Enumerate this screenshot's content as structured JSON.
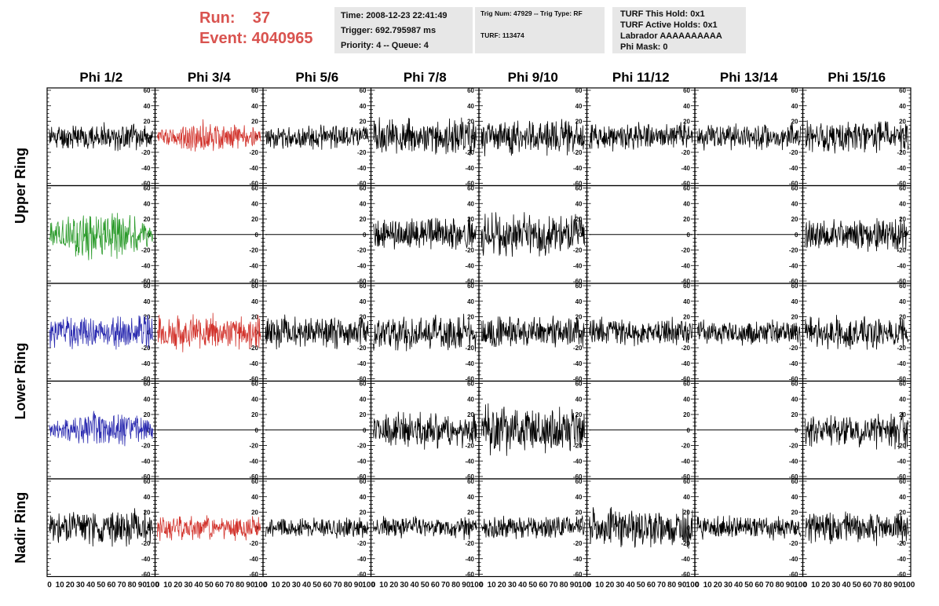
{
  "run": {
    "run_label": "Run:    37",
    "event_label": "Event: 4040965"
  },
  "info_box_1": {
    "time": "Time: 2008-12-23 22:41:49",
    "trigger": "Trigger: 692.795987 ms",
    "priority": "Priority: 4 -- Queue: 4"
  },
  "info_box_2": {
    "trig": "Trig Num: 47929 -- Trig Type: RF",
    "turf": "TURF: 113474"
  },
  "info_box_3": {
    "hold": "TURF This Hold: 0x1",
    "active": "TURF Active Holds: 0x1",
    "labrador": "Labrador AAAAAAAAAA",
    "mask": "Phi Mask: 0"
  },
  "colors": {
    "black": "#000000",
    "red": "#d2332c",
    "green": "#2a9a2a",
    "blue": "#2b2bb0",
    "info_bg": "#e7e7e7",
    "title_red": "#d9534f"
  },
  "chart_data": {
    "type": "line",
    "columns": [
      "Phi 1/2",
      "Phi 3/4",
      "Phi 5/6",
      "Phi 7/8",
      "Phi 9/10",
      "Phi 11/12",
      "Phi 13/14",
      "Phi 15/16"
    ],
    "ring_labels": [
      "Upper Ring",
      "Lower Ring",
      "Nadir Ring"
    ],
    "rows": 5,
    "ylim": [
      -60,
      60
    ],
    "xlim": [
      0,
      100
    ],
    "yticks": [
      "60",
      "40",
      "20",
      "0",
      "-20",
      "-40",
      "-60"
    ],
    "xticks": [
      "0",
      "10",
      "20",
      "30",
      "40",
      "50",
      "60",
      "70",
      "80",
      "90",
      "100"
    ],
    "panels": [
      [
        {
          "color": "black",
          "amp": 16,
          "seed": 11
        },
        {
          "color": "red",
          "amp": 20,
          "seed": 12,
          "env": true
        },
        {
          "color": "black",
          "amp": 14,
          "seed": 13
        },
        {
          "color": "black",
          "amp": 22,
          "seed": 14
        },
        {
          "color": "black",
          "amp": 22,
          "seed": 15
        },
        {
          "color": "black",
          "amp": 17,
          "seed": 16
        },
        {
          "color": "black",
          "amp": 16,
          "seed": 17
        },
        {
          "color": "black",
          "amp": 20,
          "seed": 18
        }
      ],
      [
        {
          "color": "green",
          "amp": 32,
          "seed": 21,
          "env": true
        },
        {
          "color": "black",
          "amp": 0,
          "seed": 22
        },
        {
          "color": "black",
          "amp": 0,
          "seed": 23
        },
        {
          "color": "black",
          "amp": 20,
          "seed": 24
        },
        {
          "color": "black",
          "amp": 26,
          "seed": 25
        },
        {
          "color": "black",
          "amp": 0,
          "seed": 26
        },
        {
          "color": "black",
          "amp": 0,
          "seed": 27
        },
        {
          "color": "black",
          "amp": 20,
          "seed": 28
        }
      ],
      [
        {
          "color": "blue",
          "amp": 20,
          "seed": 31
        },
        {
          "color": "red",
          "amp": 22,
          "seed": 32
        },
        {
          "color": "black",
          "amp": 20,
          "seed": 33
        },
        {
          "color": "black",
          "amp": 22,
          "seed": 34
        },
        {
          "color": "black",
          "amp": 20,
          "seed": 35
        },
        {
          "color": "black",
          "amp": 17,
          "seed": 36
        },
        {
          "color": "black",
          "amp": 16,
          "seed": 37
        },
        {
          "color": "black",
          "amp": 20,
          "seed": 38
        }
      ],
      [
        {
          "color": "blue",
          "amp": 24,
          "seed": 41,
          "env": true
        },
        {
          "color": "black",
          "amp": 0,
          "seed": 42
        },
        {
          "color": "black",
          "amp": 0,
          "seed": 43
        },
        {
          "color": "black",
          "amp": 22,
          "seed": 44
        },
        {
          "color": "black",
          "amp": 30,
          "seed": 45
        },
        {
          "color": "black",
          "amp": 0,
          "seed": 46
        },
        {
          "color": "black",
          "amp": 0,
          "seed": 47
        },
        {
          "color": "black",
          "amp": 22,
          "seed": 48
        }
      ],
      [
        {
          "color": "black",
          "amp": 22,
          "seed": 51
        },
        {
          "color": "red",
          "amp": 16,
          "seed": 52
        },
        {
          "color": "black",
          "amp": 12,
          "seed": 53
        },
        {
          "color": "black",
          "amp": 14,
          "seed": 54
        },
        {
          "color": "black",
          "amp": 14,
          "seed": 55
        },
        {
          "color": "black",
          "amp": 24,
          "seed": 56
        },
        {
          "color": "black",
          "amp": 14,
          "seed": 57
        },
        {
          "color": "black",
          "amp": 20,
          "seed": 58
        }
      ]
    ]
  }
}
